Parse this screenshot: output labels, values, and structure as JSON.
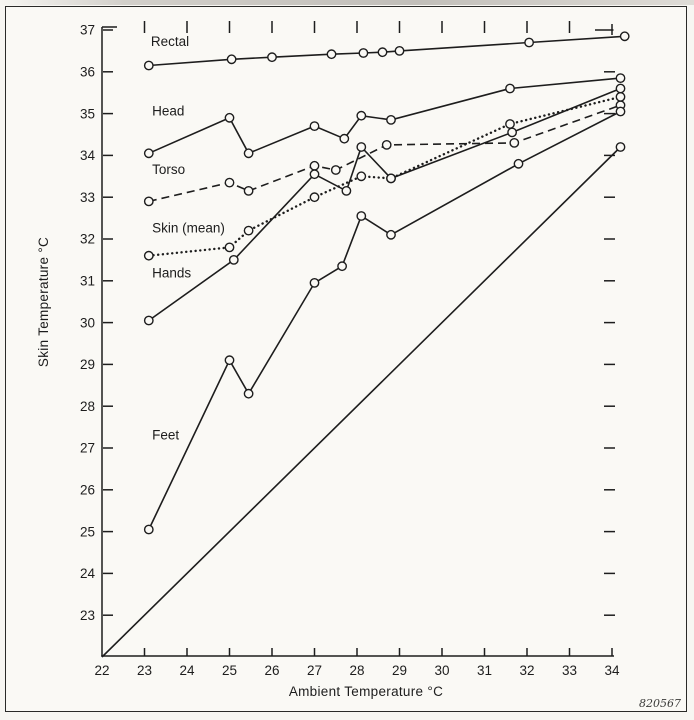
{
  "figure": {
    "number": "820567",
    "ink_color": "#1d1d1d",
    "paper_color": "#faf9f5"
  },
  "chart_data": {
    "type": "line",
    "title": "",
    "xlabel": "Ambient Temperature °C",
    "ylabel": "Skin Temperature °C",
    "xlim": [
      22,
      34.4
    ],
    "ylim": [
      22,
      37
    ],
    "grid": false,
    "legend_position": "inline-labels",
    "x_ticks": [
      22,
      23,
      24,
      25,
      26,
      27,
      28,
      29,
      30,
      31,
      32,
      33,
      34
    ],
    "y_ticks": [
      23,
      24,
      25,
      26,
      27,
      28,
      29,
      30,
      31,
      32,
      33,
      34,
      35,
      36,
      37
    ],
    "top_edge_ticks": [
      23,
      24,
      25,
      26,
      27,
      28,
      29,
      30,
      31,
      32,
      33,
      34
    ],
    "right_edge_ticks": [
      23,
      24,
      25,
      26,
      27,
      28,
      29,
      30,
      31,
      32,
      33,
      34,
      35,
      36
    ],
    "series": [
      {
        "id": "rectal",
        "label": "Rectal",
        "style": "solid",
        "markers": "all",
        "label_pos": [
          23.15,
          36.62
        ],
        "points": [
          [
            23.1,
            36.15
          ],
          [
            25.05,
            36.3
          ],
          [
            26.0,
            36.35
          ],
          [
            27.4,
            36.42
          ],
          [
            28.15,
            36.45
          ],
          [
            28.6,
            36.47
          ],
          [
            29.0,
            36.5
          ],
          [
            32.05,
            36.7
          ],
          [
            34.3,
            36.85
          ]
        ]
      },
      {
        "id": "head",
        "label": "Head",
        "style": "solid",
        "markers": "all",
        "label_pos": [
          23.18,
          34.95
        ],
        "points": [
          [
            23.1,
            34.05
          ],
          [
            25.0,
            34.9
          ],
          [
            25.45,
            34.05
          ],
          [
            27.0,
            34.7
          ],
          [
            27.7,
            34.4
          ],
          [
            28.1,
            34.95
          ],
          [
            28.8,
            34.85
          ],
          [
            31.6,
            35.6
          ],
          [
            34.2,
            35.85
          ]
        ]
      },
      {
        "id": "torso",
        "label": "Torso",
        "style": "dashed",
        "markers": "all",
        "label_pos": [
          23.18,
          33.55
        ],
        "points": [
          [
            23.1,
            32.9
          ],
          [
            25.0,
            33.35
          ],
          [
            25.45,
            33.15
          ],
          [
            27.0,
            33.75
          ],
          [
            27.5,
            33.65
          ],
          [
            28.7,
            34.25
          ],
          [
            31.7,
            34.3
          ],
          [
            34.2,
            35.2
          ]
        ]
      },
      {
        "id": "skin-mean",
        "label": "Skin (mean)",
        "style": "dotted",
        "markers": "all",
        "label_pos": [
          23.18,
          32.15
        ],
        "points": [
          [
            23.1,
            31.6
          ],
          [
            25.0,
            31.8
          ],
          [
            25.45,
            32.2
          ],
          [
            27.0,
            33.0
          ],
          [
            28.1,
            33.5
          ],
          [
            28.8,
            33.45
          ],
          [
            31.6,
            34.75
          ],
          [
            34.2,
            35.4
          ]
        ]
      },
      {
        "id": "hands",
        "label": "Hands",
        "style": "solid",
        "markers": "all",
        "label_pos": [
          23.18,
          31.08
        ],
        "points": [
          [
            23.1,
            30.05
          ],
          [
            25.1,
            31.5
          ],
          [
            27.0,
            33.55
          ],
          [
            27.75,
            33.15
          ],
          [
            28.1,
            34.2
          ],
          [
            28.8,
            33.45
          ],
          [
            31.65,
            34.55
          ],
          [
            34.2,
            35.6
          ]
        ]
      },
      {
        "id": "feet",
        "label": "Feet",
        "style": "solid",
        "markers": "all",
        "label_pos": [
          23.18,
          27.2
        ],
        "points": [
          [
            23.1,
            25.05
          ],
          [
            25.0,
            29.1
          ],
          [
            25.45,
            28.3
          ],
          [
            27.0,
            30.95
          ],
          [
            27.65,
            31.35
          ],
          [
            28.1,
            32.55
          ],
          [
            28.8,
            32.1
          ],
          [
            31.8,
            33.8
          ],
          [
            34.2,
            35.05
          ]
        ]
      },
      {
        "id": "ambient-reference",
        "label": "",
        "style": "solid",
        "markers": "last",
        "label_pos": null,
        "points": [
          [
            22,
            22
          ],
          [
            34.2,
            34.2
          ]
        ]
      }
    ]
  }
}
